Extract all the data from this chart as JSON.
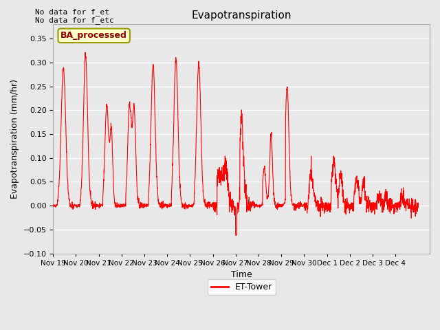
{
  "title": "Evapotranspiration",
  "xlabel": "Time",
  "ylabel": "Evapotranspiration (mm/hr)",
  "ylim": [
    -0.1,
    0.38
  ],
  "yticks": [
    -0.1,
    -0.05,
    0.0,
    0.05,
    0.1,
    0.15,
    0.2,
    0.25,
    0.3,
    0.35
  ],
  "background_color": "#e8e8e8",
  "plot_bg_color": "#e8e8e8",
  "line_color": "red",
  "grid_color": "white",
  "annotation_top_left": [
    "No data for f_et",
    "No data for f_etc"
  ],
  "legend_label": "ET-Tower",
  "legend_box_color": "#ffffcc",
  "legend_box_edge": "#999900",
  "ba_label": "BA_processed",
  "tick_labels": [
    "Nov 19",
    "Nov 20",
    "Nov 21",
    "Nov 22",
    "Nov 23",
    "Nov 24",
    "Nov 25",
    "Nov 26",
    "Nov 27",
    "Nov 28",
    "Nov 29",
    "Nov 30",
    "Dec 1",
    "Dec 2",
    "Dec 3",
    "Dec 4"
  ],
  "num_points": 2040,
  "xlim": [
    0,
    16.5
  ],
  "num_days": 16
}
